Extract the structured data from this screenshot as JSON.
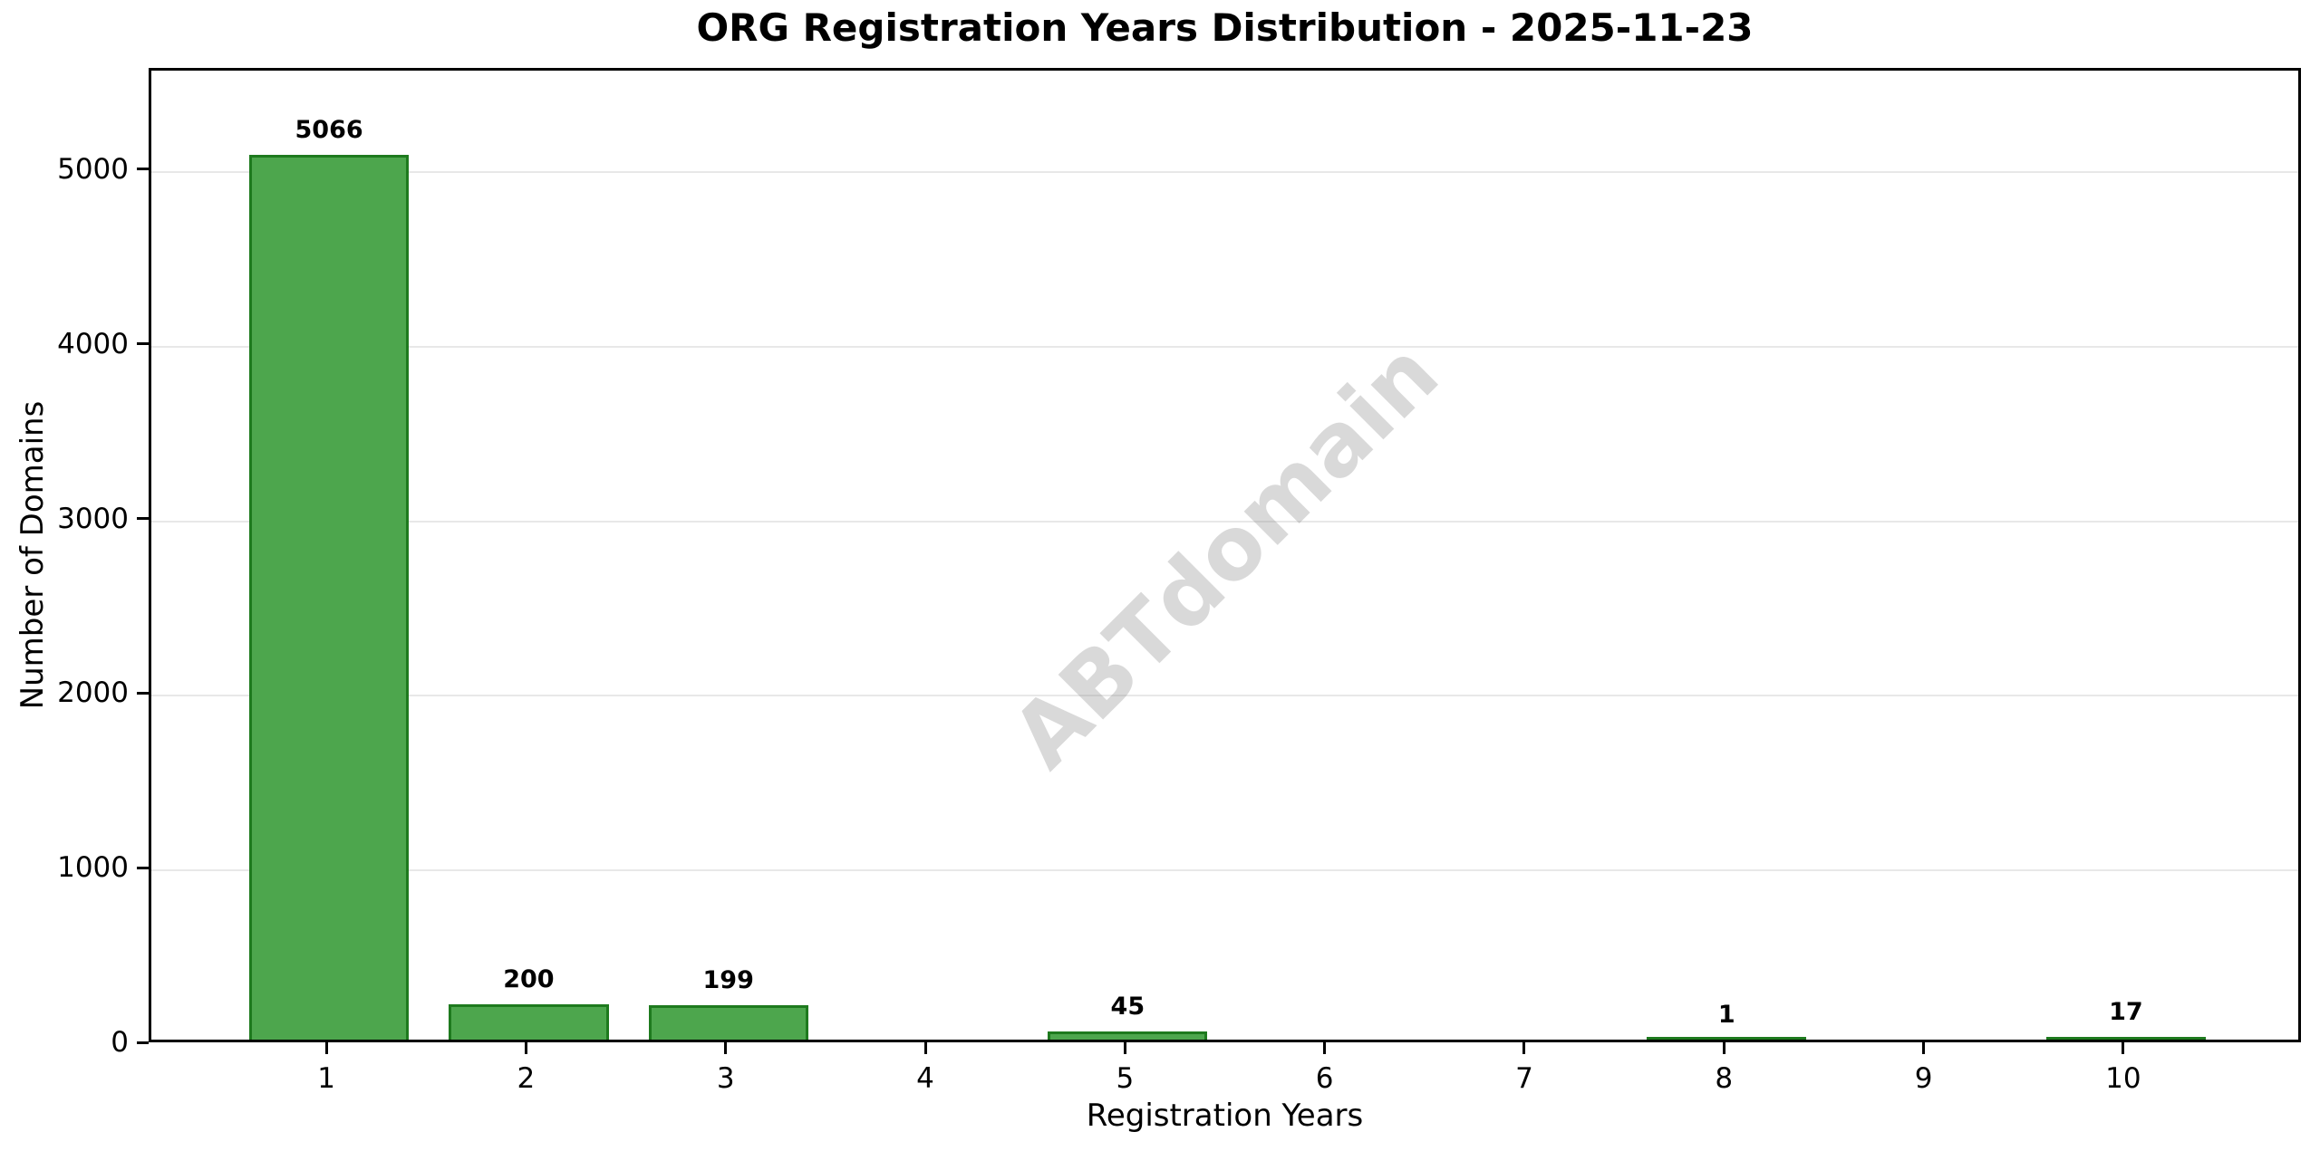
{
  "chart_data": {
    "type": "bar",
    "title": "ORG Registration Years Distribution - 2025-11-23",
    "xlabel": "Registration Years",
    "ylabel": "Number of Domains",
    "categories": [
      "1",
      "2",
      "3",
      "4",
      "5",
      "6",
      "7",
      "8",
      "9",
      "10"
    ],
    "values": [
      5066,
      200,
      199,
      0,
      45,
      0,
      0,
      1,
      0,
      17
    ],
    "bar_labels": [
      "5066",
      "200",
      "199",
      "",
      "45",
      "",
      "",
      "1",
      "",
      "17"
    ],
    "yticks": [
      0,
      1000,
      2000,
      3000,
      4000,
      5000
    ],
    "xlim": [
      0.11,
      10.89
    ],
    "ylim": [
      0,
      5580
    ],
    "bar_width_units": 0.8,
    "grid": "horizontal",
    "legend": "none",
    "watermark": "ABTdomain",
    "colors": {
      "bar_fill": "#4DA64D",
      "bar_edge": "#1E7A1E",
      "gridline": "#E8E8E8",
      "watermark": "rgba(128,128,128,0.30)",
      "text": "#000000",
      "spine": "#000000"
    }
  }
}
